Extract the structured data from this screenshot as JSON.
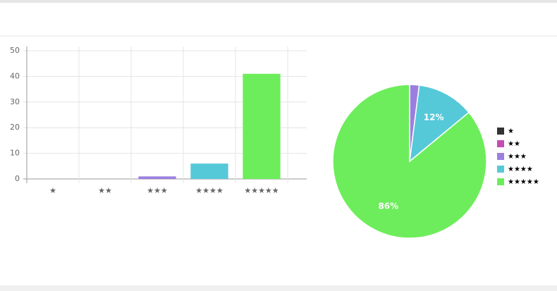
{
  "chart_data": [
    {
      "type": "bar",
      "categories": [
        "★",
        "★★",
        "★★★",
        "★★★★",
        "★★★★★"
      ],
      "values": [
        0,
        0,
        1,
        6,
        41
      ],
      "colors": [
        "#333333",
        "#c54cb4",
        "#9b7fe0",
        "#56c9d8",
        "#6ded5b"
      ],
      "ylim": [
        0,
        50
      ],
      "yticks": [
        0,
        10,
        20,
        30,
        40,
        50
      ],
      "grid": true
    },
    {
      "type": "pie",
      "categories": [
        "★",
        "★★",
        "★★★",
        "★★★★",
        "★★★★★"
      ],
      "values": [
        0,
        0,
        2,
        12,
        86
      ],
      "value_labels": [
        null,
        null,
        null,
        "12%",
        "86%"
      ],
      "colors": [
        "#333333",
        "#c54cb4",
        "#9b7fe0",
        "#56c9d8",
        "#6ded5b"
      ],
      "legend": "right"
    }
  ]
}
